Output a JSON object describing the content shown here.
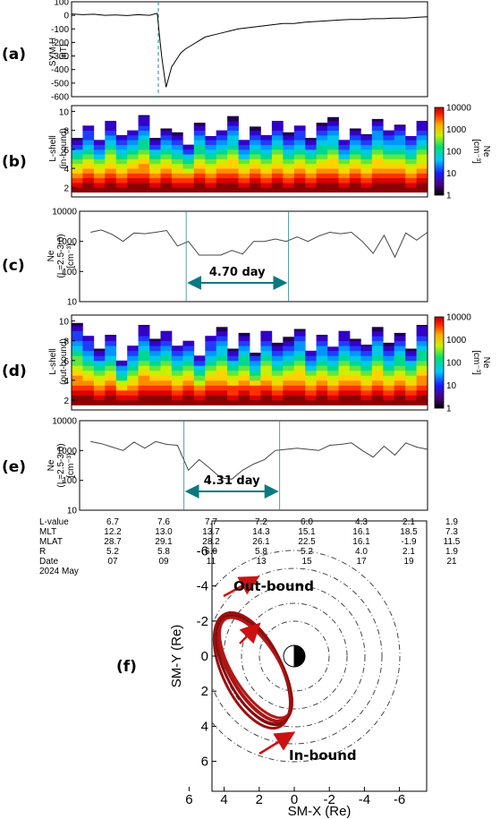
{
  "chart_data": [
    {
      "panel": "(a)",
      "type": "line",
      "ylabel": "SYM-H",
      "yunit": "[nT]",
      "ylim": [
        -600,
        100
      ],
      "yticks": [
        "100",
        "0",
        "-100",
        "-200",
        "-300",
        "-400",
        "-500",
        "-600"
      ],
      "day_range": [
        6,
        22
      ],
      "storm_day": 9.9,
      "x": [
        6.0,
        6.5,
        7.0,
        7.5,
        8.0,
        8.5,
        9.0,
        9.5,
        9.85,
        9.95,
        10.05,
        10.15,
        10.25,
        10.35,
        10.5,
        10.7,
        10.9,
        11.1,
        11.4,
        11.7,
        12.0,
        12.5,
        13.0,
        13.5,
        14.0,
        14.5,
        15.0,
        15.5,
        16.0,
        16.5,
        17.0,
        17.5,
        18.0,
        18.5,
        19.0,
        19.5,
        20.0,
        20.5,
        21.0,
        21.5,
        22.0
      ],
      "y": [
        10,
        5,
        8,
        0,
        3,
        -2,
        5,
        0,
        15,
        -150,
        -300,
        -420,
        -530,
        -470,
        -380,
        -330,
        -280,
        -250,
        -220,
        -190,
        -160,
        -140,
        -120,
        -100,
        -90,
        -80,
        -70,
        -60,
        -60,
        -50,
        -45,
        -40,
        -35,
        -30,
        -30,
        -25,
        -25,
        -20,
        -20,
        -15,
        -10
      ]
    },
    {
      "panel": "(b)",
      "type": "heatmap",
      "ylabel": "L-shell",
      "ysub": "(in-bound)",
      "yticks": [
        "2",
        "4",
        "6",
        "8",
        "10"
      ],
      "colorbar_label": "Ne",
      "colorbar_unit": "[cm⁻³]",
      "colorbar_ticks": [
        "10000",
        "1000",
        "100",
        "10",
        "1"
      ],
      "lmax": [
        7.2,
        8.5,
        7.0,
        9.0,
        7.5,
        8.0,
        9.6,
        7.2,
        8.2,
        7.8,
        6.5,
        8.8,
        7.4,
        8.0,
        9.5,
        7.0,
        8.4,
        7.5,
        9.0,
        7.8,
        8.5,
        7.2,
        8.8,
        9.4,
        7.0,
        8.2,
        7.6,
        9.2,
        8.0,
        8.6,
        7.4,
        9.0
      ]
    },
    {
      "panel": "(c)",
      "type": "line",
      "ylabel": "Ne",
      "ysub": "(L=2.5-3.0)",
      "yunit": "[cm⁻³]",
      "yscale": "log",
      "yticks": [
        "10000",
        "1000",
        "100",
        "10"
      ],
      "x": [
        6.5,
        7.0,
        7.5,
        8.0,
        8.5,
        9.0,
        9.5,
        10.0,
        10.5,
        11.0,
        11.5,
        12.0,
        12.5,
        13.0,
        13.5,
        14.0,
        14.5,
        15.0,
        15.5,
        16.0,
        16.5,
        17.0,
        17.5,
        18.0,
        18.5,
        19.0,
        19.5,
        20.0,
        20.5,
        21.0,
        21.5,
        22.0
      ],
      "y": [
        2000,
        2400,
        1700,
        1000,
        1900,
        1800,
        2000,
        2300,
        700,
        1000,
        350,
        350,
        350,
        500,
        380,
        1000,
        1000,
        1200,
        1000,
        1400,
        1000,
        1500,
        2000,
        1800,
        2000,
        1000,
        400,
        1600,
        300,
        1900,
        1100,
        2000
      ],
      "interval_label": "4.70 day",
      "interval": [
        10.9,
        15.6
      ]
    },
    {
      "panel": "(d)",
      "type": "heatmap",
      "ylabel": "L-shell",
      "ysub": "(out-bound)",
      "yticks": [
        "2",
        "4",
        "6",
        "8",
        "10"
      ],
      "colorbar_label": "Ne",
      "colorbar_unit": "[cm⁻³]",
      "colorbar_ticks": [
        "10000",
        "1000",
        "100",
        "10",
        "1"
      ],
      "lmax": [
        9.8,
        8.5,
        7.2,
        8.6,
        6.0,
        7.5,
        9.6,
        8.2,
        9.0,
        7.5,
        8.0,
        6.5,
        8.5,
        9.4,
        7.2,
        8.8,
        6.8,
        9.0,
        7.8,
        8.4,
        9.2,
        7.0,
        8.6,
        7.4,
        9.0,
        8.2,
        7.6,
        9.4,
        7.8,
        8.8,
        7.2,
        9.6
      ]
    },
    {
      "panel": "(e)",
      "type": "line",
      "ylabel": "Ne",
      "ysub": "(L=2.5-3.0)",
      "yunit": "[cm⁻³]",
      "yscale": "log",
      "yticks": [
        "10000",
        "1000",
        "100",
        "10"
      ],
      "x": [
        6.5,
        7.0,
        7.5,
        8.0,
        8.5,
        9.0,
        9.5,
        10.0,
        10.5,
        11.0,
        11.5,
        12.0,
        12.5,
        13.0,
        13.5,
        14.0,
        14.5,
        15.0,
        15.5,
        16.0,
        16.5,
        17.0,
        17.5,
        18.0,
        18.5,
        19.0,
        19.5,
        20.0,
        20.5,
        21.0,
        21.5,
        22.0
      ],
      "y": [
        2000,
        1700,
        1300,
        1000,
        1900,
        1200,
        2000,
        1600,
        1500,
        220,
        500,
        250,
        120,
        110,
        220,
        350,
        500,
        1000,
        1100,
        1200,
        1100,
        1000,
        1500,
        1600,
        1800,
        1000,
        600,
        1400,
        700,
        1800,
        1300,
        1100
      ],
      "interval_label": "4.31 day",
      "interval": [
        10.8,
        15.2
      ]
    },
    {
      "panel": "(f)",
      "type": "scatter",
      "xlabel": "SM-X (Re)",
      "ylabel": "SM-Y (Re)",
      "xticks": [
        "6",
        "4",
        "2",
        "0",
        "-2",
        "-4",
        "-6"
      ],
      "yticks": [
        "-6",
        "-4",
        "-2",
        "0",
        "2",
        "4",
        "6"
      ],
      "annotations": [
        "Out-bound",
        "In-bound"
      ]
    }
  ],
  "table": {
    "row_labels": [
      "L-value",
      "MLT",
      "MLAT",
      "R",
      "Date",
      "2024 May"
    ],
    "columns": [
      [
        "6.7",
        "12.2",
        "28.7",
        "5.2",
        "07"
      ],
      [
        "7.6",
        "13.0",
        "29.1",
        "5.8",
        "09"
      ],
      [
        "7.7",
        "13.7",
        "28.2",
        "6.0",
        "11"
      ],
      [
        "7.2",
        "14.3",
        "26.1",
        "5.8",
        "13"
      ],
      [
        "6.0",
        "15.1",
        "22.5",
        "5.2",
        "15"
      ],
      [
        "4.3",
        "16.1",
        "16.1",
        "4.0",
        "17"
      ],
      [
        "2.1",
        "18.5",
        "-1.9",
        "2.1",
        "19"
      ],
      [
        "1.9",
        "7.3",
        "11.5",
        "1.9",
        "21"
      ]
    ]
  }
}
